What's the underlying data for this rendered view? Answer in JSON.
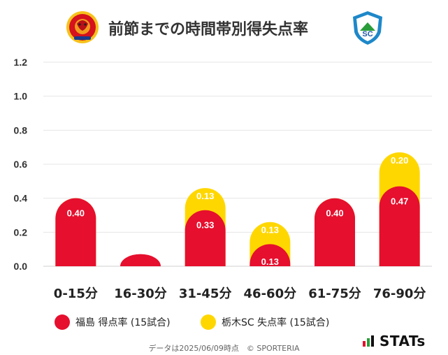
{
  "header": {
    "title": "前節までの時間帯別得失点率",
    "home_logo_text": "FUKUSHIMA UNITED F.C.",
    "away_logo_text": "SC"
  },
  "colors": {
    "home": "#e60f2e",
    "away": "#ffd700",
    "grid": "#e6e6e6"
  },
  "chart_data": {
    "type": "bar",
    "title": "前節までの時間帯別得失点率",
    "categories": [
      "0-15分",
      "16-30分",
      "31-45分",
      "46-60分",
      "61-75分",
      "76-90分"
    ],
    "series": [
      {
        "name": "福島 得点率 (15試合)",
        "values": [
          0.4,
          0.0,
          0.33,
          0.13,
          0.4,
          0.47
        ]
      },
      {
        "name": "栃木SC 失点率 (15試合)",
        "values": [
          0.0,
          0.0,
          0.13,
          0.13,
          0.0,
          0.2
        ]
      }
    ],
    "stacked": true,
    "ylim": [
      0,
      1.2
    ],
    "yticks": [
      "0.0",
      "0.2",
      "0.4",
      "0.6",
      "0.8",
      "1.0",
      "1.2"
    ],
    "data_labels": {
      "home": [
        "0.40",
        "",
        "0.33",
        "0.13",
        "0.40",
        "0.47"
      ],
      "away": [
        "",
        "",
        "0.13",
        "0.13",
        "",
        "0.20"
      ]
    },
    "grid": true,
    "legend": "bottom"
  },
  "legend": {
    "home_label": "福島 得点率 (15試合)",
    "away_label": "栃木SC 失点率 (15試合)"
  },
  "footer": {
    "note": "データは2025/06/09時点　© SPORTERIA",
    "brand": "STATs"
  }
}
